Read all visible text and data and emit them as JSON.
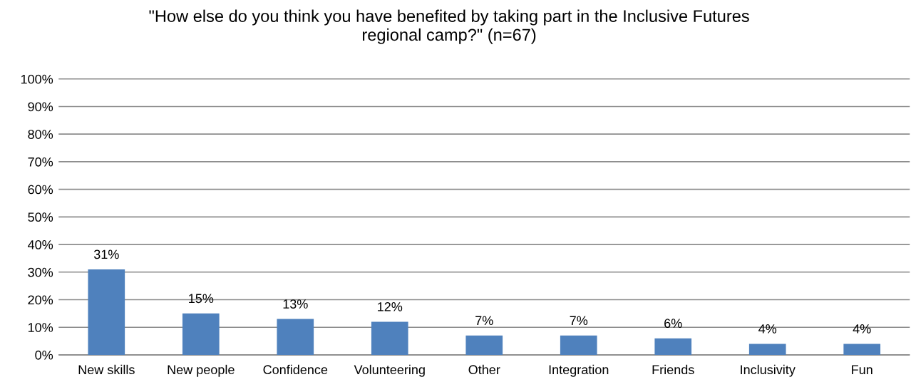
{
  "chart_data": {
    "type": "bar",
    "title": "\"How else do you think you have benefited by taking part in the Inclusive Futures regional camp?\" (n=67)",
    "categories": [
      "New skills",
      "New people",
      "Confidence",
      "Volunteering",
      "Other",
      "Integration",
      "Friends",
      "Inclusivity",
      "Fun"
    ],
    "values": [
      31,
      15,
      13,
      12,
      7,
      7,
      6,
      4,
      4
    ],
    "value_labels": [
      "31%",
      "15%",
      "13%",
      "12%",
      "7%",
      "7%",
      "6%",
      "4%",
      "4%"
    ],
    "color": "#4f81bd",
    "ylim": [
      0,
      100
    ],
    "yticks": [
      {
        "value": 0,
        "label": "0%"
      },
      {
        "value": 10,
        "label": "10%"
      },
      {
        "value": 20,
        "label": "20%"
      },
      {
        "value": 30,
        "label": "30%"
      },
      {
        "value": 40,
        "label": "40%"
      },
      {
        "value": 50,
        "label": "50%"
      },
      {
        "value": 60,
        "label": "60%"
      },
      {
        "value": 70,
        "label": "70%"
      },
      {
        "value": 80,
        "label": "80%"
      },
      {
        "value": 90,
        "label": "90%"
      },
      {
        "value": 100,
        "label": "100%"
      }
    ],
    "grid": "y",
    "legend": false
  }
}
